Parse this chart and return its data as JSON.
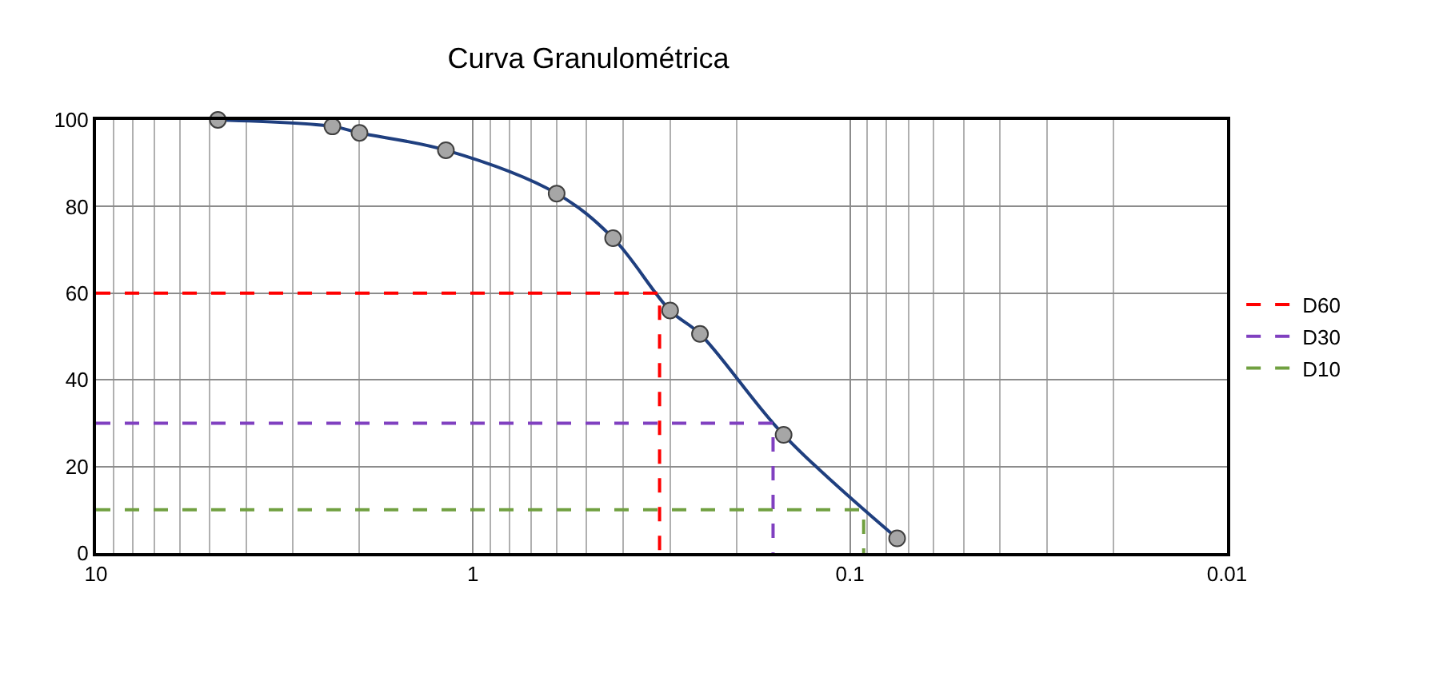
{
  "chart_data": {
    "type": "line",
    "title": "Curva Granulométrica",
    "log": "x",
    "grid": true,
    "legend": "right",
    "xlim": [
      10,
      0.01
    ],
    "xticks": [
      10,
      1,
      0.1,
      0.01
    ],
    "ylim": [
      0,
      100
    ],
    "yticks": [
      0,
      20,
      40,
      60,
      80,
      100
    ],
    "series": [
      {
        "color": "#1f3f7f",
        "marker": "circle",
        "line_style": "solid",
        "x": [
          4.75,
          2.36,
          2.0,
          1.18,
          0.6,
          0.425,
          0.3,
          0.25,
          0.15,
          0.075
        ],
        "values": [
          100,
          98.5,
          97,
          93,
          83,
          72.7,
          56,
          50.6,
          27.3,
          3.4
        ]
      },
      {
        "name": "D60",
        "color": "#ff0000",
        "marker": "none",
        "line_style": "dashed",
        "x": [
          10,
          0.32,
          0.32
        ],
        "values": [
          60,
          60,
          0
        ]
      },
      {
        "name": "D30",
        "color": "#8040c0",
        "marker": "none",
        "line_style": "dashed",
        "x": [
          10,
          0.16,
          0.16
        ],
        "values": [
          30,
          30,
          0
        ]
      },
      {
        "name": "D10",
        "color": "#70a040",
        "marker": "none",
        "line_style": "dashed",
        "x": [
          10,
          0.092,
          0.092
        ],
        "values": [
          10,
          10,
          0
        ]
      }
    ]
  }
}
